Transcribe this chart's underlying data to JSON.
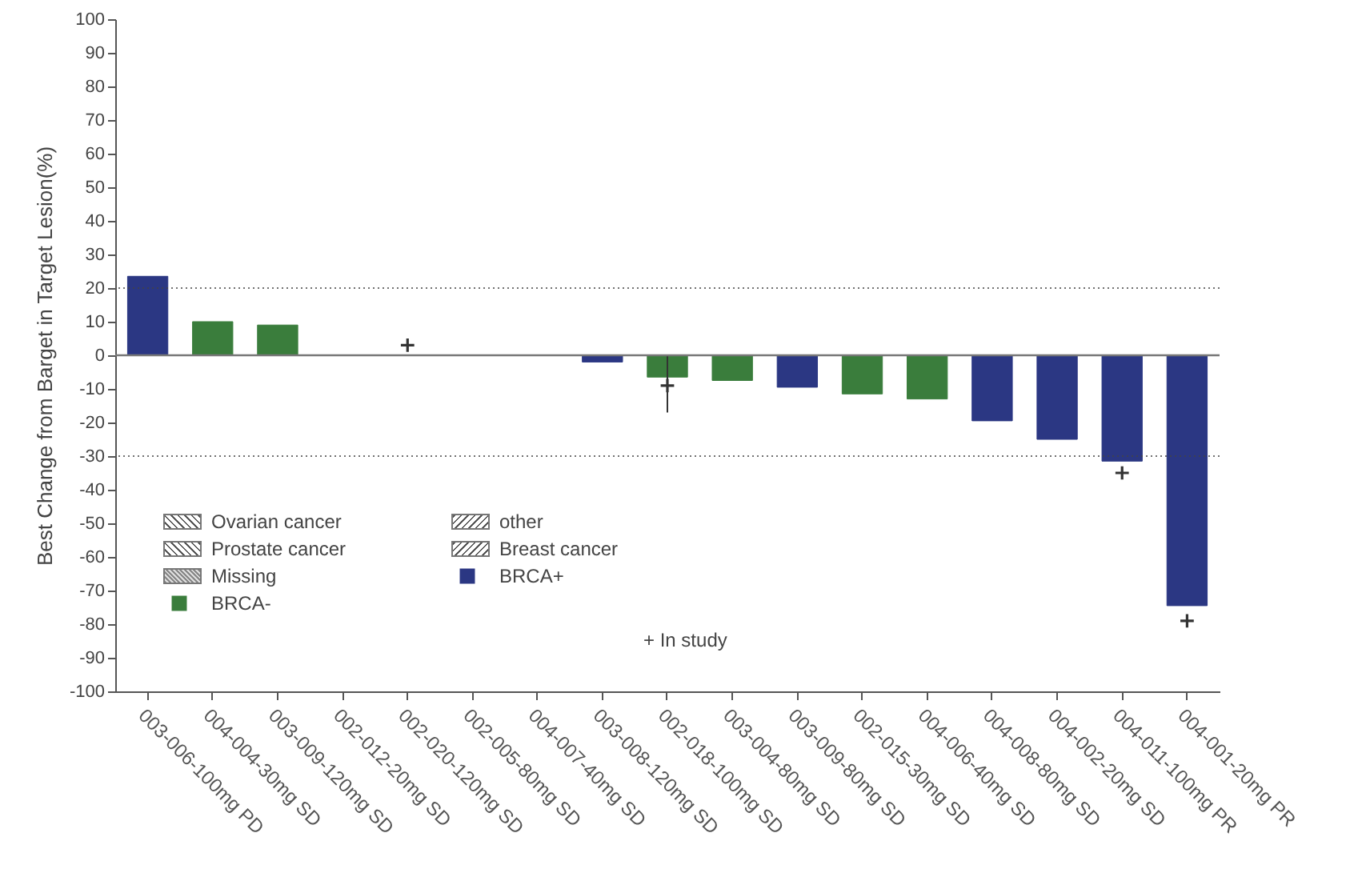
{
  "chart_data": {
    "type": "bar",
    "ylabel": "Best Change from Barget in Target Lesion(%)",
    "categories": [
      "003-006-100mg PD",
      "004-004-30mg SD",
      "003-009-120mg SD",
      "002-012-20mg SD",
      "002-020-120mg SD",
      "002-005-80mg SD",
      "004-007-40mg SD",
      "003-008-120mg SD",
      "002-018-100mg SD",
      "003-004-80mg SD",
      "003-009-80mg SD",
      "002-015-30mg SD",
      "004-006-40mg SD",
      "004-008-80mg SD",
      "004-002-20mg SD",
      "004-011-100mg PR",
      "004-001-20mg PR"
    ],
    "series": [
      {
        "name": "BRCA-",
        "color": "#3a7d3c",
        "values": [
          null,
          10,
          9,
          null,
          null,
          null,
          null,
          null,
          -6.5,
          -7.5,
          null,
          -11.5,
          -13,
          null,
          null,
          null,
          null
        ],
        "errors": [
          null,
          null,
          null,
          null,
          null,
          null,
          null,
          null,
          [
            -17,
            0
          ],
          null,
          null,
          null,
          null,
          null,
          null,
          null,
          null
        ]
      },
      {
        "name": "BRCA+",
        "color": "#2b3783",
        "values": [
          23.5,
          null,
          null,
          null,
          null,
          null,
          null,
          -2,
          null,
          null,
          -9.5,
          null,
          null,
          -19.5,
          -25,
          -31.5,
          -74.5
        ]
      },
      {
        "type": "scatter",
        "marker": "cross",
        "color": "#333333",
        "values": [
          null,
          null,
          null,
          null,
          3,
          null,
          null,
          null,
          -9,
          null,
          null,
          null,
          null,
          null,
          null,
          -35,
          -79
        ]
      }
    ],
    "ylim": [
      -100,
      100
    ],
    "yticks": [
      -100,
      -90,
      -80,
      -70,
      -60,
      -50,
      -40,
      -30,
      -20,
      -10,
      0,
      10,
      20,
      30,
      40,
      50,
      60,
      70,
      80,
      90,
      100
    ],
    "ref_lines": [
      {
        "axis": "y",
        "value": 20,
        "line_style": "dotted"
      },
      {
        "axis": "y",
        "value": -30,
        "line_style": "dotted"
      }
    ],
    "annotations": [
      "Ovarian cancer",
      "Prostate cancer",
      "Missing",
      "other",
      "Breast cancer",
      "+ In study"
    ],
    "legend": "bottom left",
    "grid": false
  }
}
